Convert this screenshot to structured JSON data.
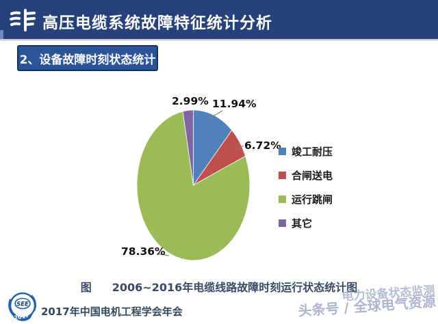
{
  "header": {
    "title": "高压电缆系统故障特征统计分析"
  },
  "section": {
    "title": "2、设备故障时刻状态统计"
  },
  "chart_data": {
    "type": "pie",
    "title": "图    2006~2016年电缆线路故障时刻运行状态统计图",
    "labels": [
      "竣工耐压",
      "合闸送电",
      "运行跳闸",
      "其它"
    ],
    "values": [
      11.94,
      6.72,
      78.36,
      2.99
    ],
    "pct_labels": [
      "11.94%",
      "6.72%",
      "78.36%",
      "2.99%"
    ],
    "colors": [
      "#4f81bd",
      "#c0504d",
      "#9bbb59",
      "#8064a2"
    ],
    "shape": "oval",
    "start_angle_deg": 0,
    "direction": "clockwise",
    "legend_position": "right"
  },
  "caption": {
    "prefix": "图",
    "text": "2006~2016年电缆线路故障时刻运行状态统计图"
  },
  "footer": {
    "logo_text": "SEE",
    "logo_year": "2017",
    "conference": "2017年中国电机工程学会年会"
  },
  "watermark": {
    "line1": "电力设备状态监测",
    "line2": "头条号 / 全球电气资源"
  }
}
